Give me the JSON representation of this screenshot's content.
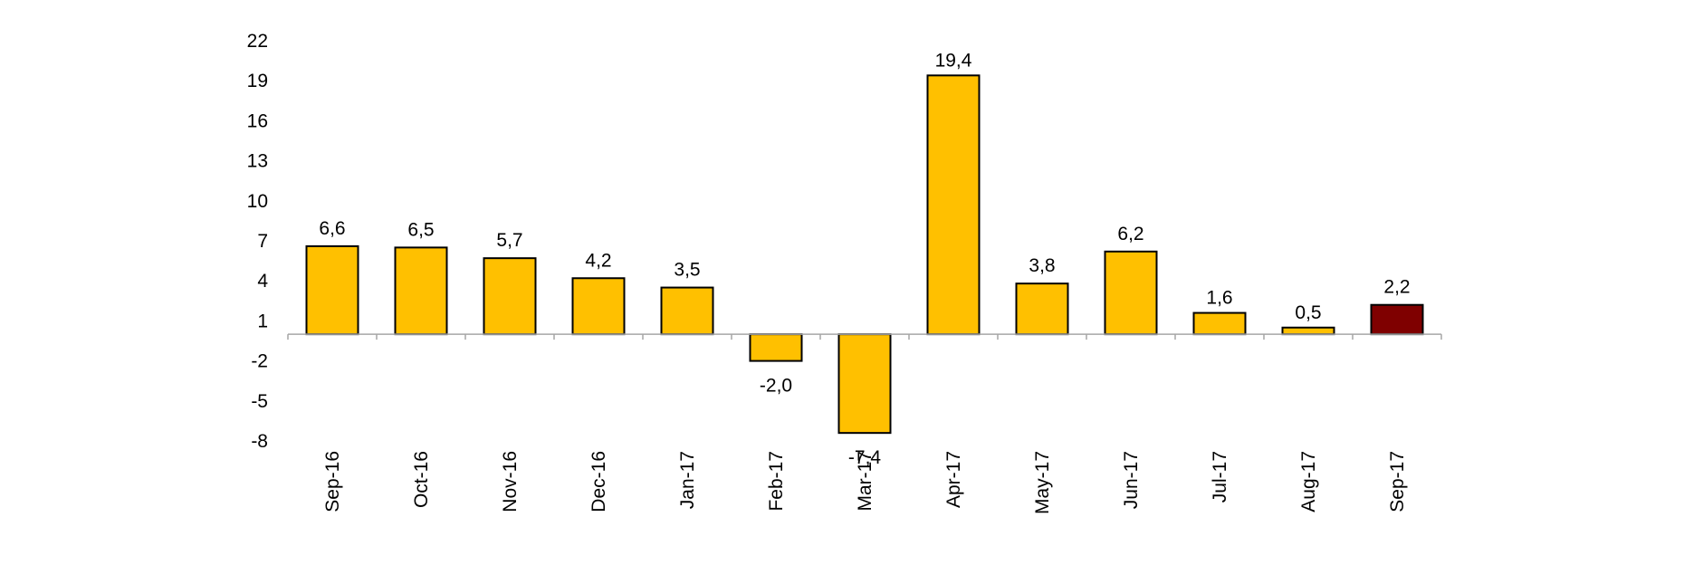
{
  "chart_data": {
    "type": "bar",
    "title": "",
    "xlabel": "",
    "ylabel": "",
    "categories": [
      "Sep-16",
      "Oct-16",
      "Nov-16",
      "Dec-16",
      "Jan-17",
      "Feb-17",
      "Mar-17",
      "Apr-17",
      "May-17",
      "Jun-17",
      "Jul-17",
      "Aug-17",
      "Sep-17"
    ],
    "values": [
      6.6,
      6.5,
      5.7,
      4.2,
      3.5,
      -2.0,
      -7.4,
      19.4,
      3.8,
      6.2,
      1.6,
      0.5,
      2.2
    ],
    "data_labels": [
      "6,6",
      "6,5",
      "5,7",
      "4,2",
      "3,5",
      "-2,0",
      "-7,4",
      "19,4",
      "3,8",
      "6,2",
      "1,6",
      "0,5",
      "2,2"
    ],
    "ylim": [
      -8,
      22
    ],
    "yticks": [
      22,
      19,
      16,
      13,
      10,
      7,
      4,
      1,
      -2,
      -5,
      -8
    ],
    "grid": false,
    "legend": "none",
    "colors": {
      "bar": "#FFC000",
      "highlight_bar": "#7F0000",
      "stroke": "#000000",
      "axis": "#A6A6A6"
    },
    "highlight_index": 12
  }
}
